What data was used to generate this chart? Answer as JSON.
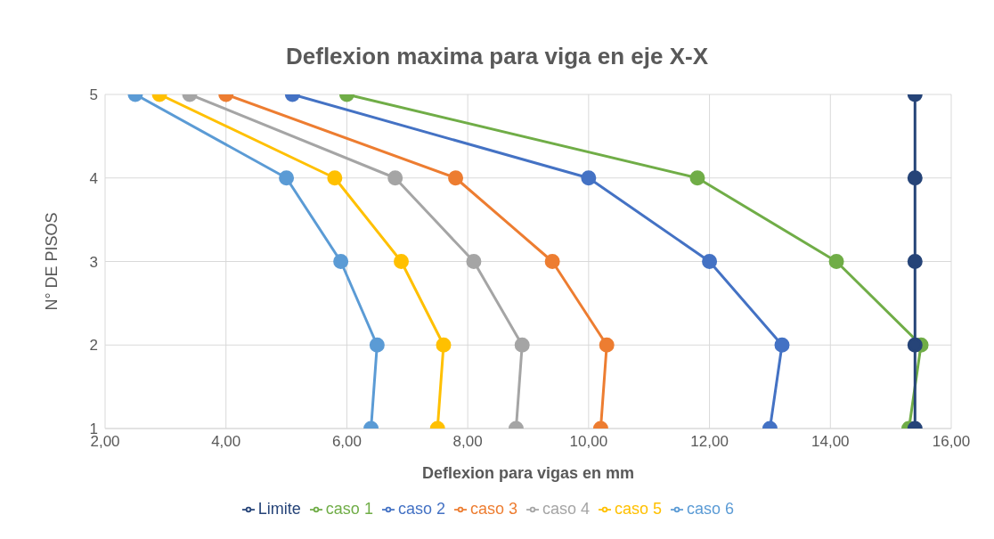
{
  "chart_data": {
    "type": "line",
    "title": "Deflexion maxima para viga en eje X-X",
    "xlabel": "Deflexion para vigas en mm",
    "ylabel": "N° DE PISOS",
    "xlim": [
      2,
      16
    ],
    "xticks": [
      {
        "value": 2,
        "label": "2,00"
      },
      {
        "value": 4,
        "label": "4,00"
      },
      {
        "value": 6,
        "label": "6,00"
      },
      {
        "value": 8,
        "label": "8,00"
      },
      {
        "value": 10,
        "label": "10,00"
      },
      {
        "value": 12,
        "label": "12,00"
      },
      {
        "value": 14,
        "label": "14,00"
      },
      {
        "value": 16,
        "label": "16,00"
      }
    ],
    "ylim": [
      1,
      5
    ],
    "yticks": [
      1,
      2,
      3,
      4,
      5
    ],
    "grid": true,
    "legend": "bottom",
    "marker": "circle",
    "line_style": "solid",
    "series": [
      {
        "name": "caso 1",
        "color": "#70ad47",
        "x": [
          15.3,
          15.5,
          14.1,
          11.8,
          6.0
        ],
        "values": [
          1,
          2,
          3,
          4,
          5
        ]
      },
      {
        "name": "caso 2",
        "color": "#4472c4",
        "x": [
          13.0,
          13.2,
          12.0,
          10.0,
          5.1
        ],
        "values": [
          1,
          2,
          3,
          4,
          5
        ]
      },
      {
        "name": "caso 3",
        "color": "#ed7d31",
        "x": [
          10.2,
          10.3,
          9.4,
          7.8,
          4.0
        ],
        "values": [
          1,
          2,
          3,
          4,
          5
        ]
      },
      {
        "name": "caso 4",
        "color": "#a5a5a5",
        "x": [
          8.8,
          8.9,
          8.1,
          6.8,
          3.4
        ],
        "values": [
          1,
          2,
          3,
          4,
          5
        ]
      },
      {
        "name": "caso 5",
        "color": "#ffc000",
        "x": [
          7.5,
          7.6,
          6.9,
          5.8,
          2.9
        ],
        "values": [
          1,
          2,
          3,
          4,
          5
        ]
      },
      {
        "name": "caso 6",
        "color": "#5b9bd5",
        "x": [
          6.4,
          6.5,
          5.9,
          5.0,
          2.5
        ],
        "values": [
          1,
          2,
          3,
          4,
          5
        ]
      },
      {
        "name": "Limite",
        "color": "#264478",
        "x": [
          15.4,
          15.4,
          15.4,
          15.4,
          15.4
        ],
        "values": [
          1,
          2,
          3,
          4,
          5
        ]
      }
    ]
  }
}
